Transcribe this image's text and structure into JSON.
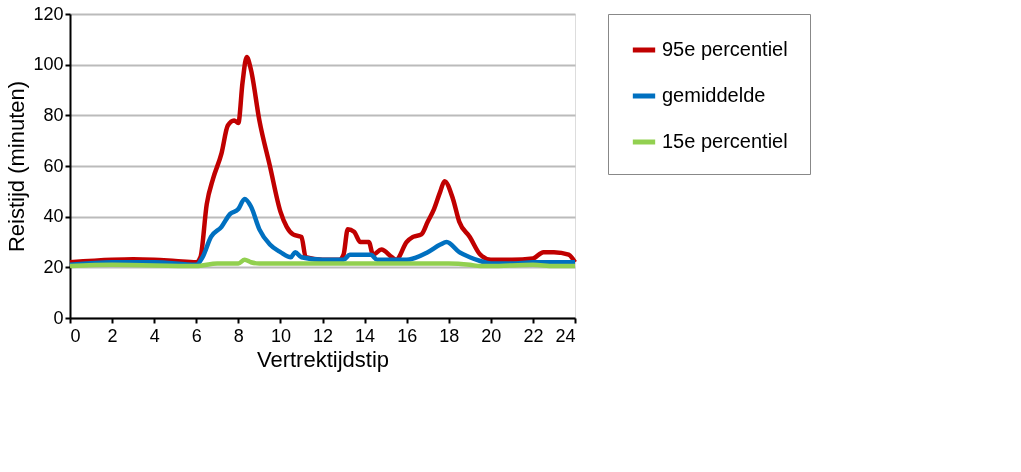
{
  "chart_data": {
    "type": "line",
    "xlabel": "Vertrektijdstip",
    "ylabel": "Reistijd (minuten)",
    "xlim": [
      0,
      24
    ],
    "xticks": [
      0,
      2,
      4,
      6,
      8,
      10,
      12,
      14,
      16,
      18,
      20,
      22,
      24
    ],
    "ylim": [
      0,
      120
    ],
    "yticks": [
      0,
      20,
      40,
      60,
      80,
      100,
      120
    ],
    "grid": "y",
    "legend": "right",
    "marker": "none",
    "line_style": "solid",
    "series": [
      {
        "name": "95e percentiel",
        "color": "#c00000",
        "x": [
          0,
          2,
          3,
          4,
          5,
          6,
          6.2,
          6.5,
          6.8,
          7.2,
          7.5,
          7.8,
          8.0,
          8.2,
          8.4,
          8.6,
          9,
          9.5,
          10,
          10.3,
          10.6,
          11,
          11.2,
          12,
          12.8,
          13,
          13.2,
          13.5,
          13.8,
          14.2,
          14.4,
          14.8,
          15.3,
          15.5,
          16,
          16.3,
          16.7,
          17,
          17.3,
          17.6,
          17.8,
          18.2,
          18.5,
          19,
          19.5,
          20,
          21,
          22,
          22.5,
          23,
          23.7,
          24
        ],
        "values": [
          22,
          23,
          23.2,
          23,
          22.5,
          22,
          24,
          45,
          55,
          65,
          76,
          78,
          77,
          93,
          103,
          98,
          78,
          60,
          42,
          36,
          33,
          32,
          24,
          23,
          23,
          25,
          35,
          34,
          30,
          30,
          25,
          27,
          24,
          23,
          30,
          32,
          33,
          38,
          43,
          50,
          54,
          47,
          38,
          32,
          25,
          23,
          23,
          23.5,
          26,
          26,
          25,
          22
        ]
      },
      {
        "name": "gemiddelde",
        "color": "#0070c0",
        "x": [
          0,
          2,
          4,
          6,
          6.3,
          6.7,
          7.2,
          7.6,
          8,
          8.3,
          8.6,
          9,
          9.5,
          10,
          10.5,
          10.7,
          11,
          12,
          13,
          13.3,
          14,
          14.3,
          14.6,
          15,
          16,
          17,
          17.6,
          17.9,
          18.5,
          19,
          19.5,
          20,
          21,
          22,
          23,
          24
        ],
        "values": [
          21,
          22,
          22,
          21,
          24,
          32,
          36,
          41,
          43,
          47,
          44,
          35,
          29,
          26,
          24,
          26,
          24,
          23,
          23,
          25,
          25,
          25,
          23,
          23,
          23,
          26,
          29,
          30,
          26,
          24,
          22.5,
          21.5,
          21.5,
          22,
          22,
          22
        ]
      },
      {
        "name": "15e percentiel",
        "color": "#92d050",
        "x": [
          0,
          2,
          6,
          7,
          8,
          8.3,
          8.6,
          9,
          12,
          16,
          18,
          19,
          19.5,
          20,
          22,
          23,
          24
        ],
        "values": [
          20.5,
          21,
          20.5,
          21.5,
          21.5,
          23,
          22,
          21.5,
          21.5,
          21.5,
          21.5,
          21,
          20.5,
          20.5,
          21,
          20.5,
          20.5
        ]
      }
    ]
  }
}
